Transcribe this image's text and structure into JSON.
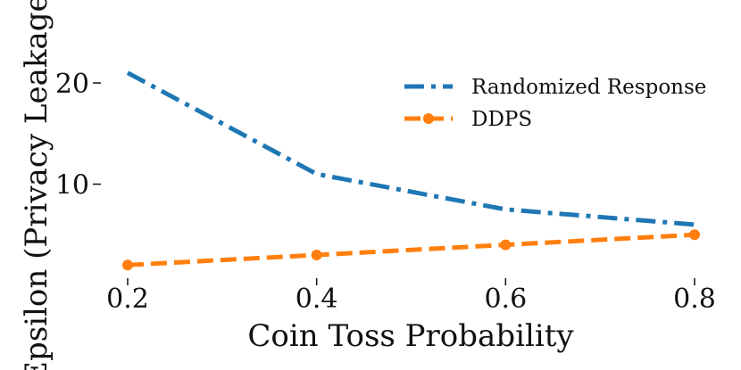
{
  "chart_data": {
    "type": "line",
    "title": "",
    "xlabel": "Coin Toss Probability",
    "ylabel": "Epsilon (Privacy Leakage)",
    "x": [
      0.2,
      0.4,
      0.6,
      0.8
    ],
    "xticks": [
      "0.2",
      "0.4",
      "0.6",
      "0.8"
    ],
    "yticks": [
      "10",
      "20"
    ],
    "ytick_values": [
      10,
      20
    ],
    "xlim": [
      0.2,
      0.8
    ],
    "ylim": [
      0,
      26
    ],
    "grid": false,
    "legend_position": "top-right",
    "series": [
      {
        "name": "Randomized Response",
        "values": [
          21,
          11,
          7.5,
          6
        ],
        "color": "#1f77b4",
        "style": "dashdot",
        "markers": false
      },
      {
        "name": "DDPS",
        "values": [
          2,
          3,
          4,
          5
        ],
        "color": "#ff7f0e",
        "style": "dashed",
        "markers": true
      }
    ]
  }
}
